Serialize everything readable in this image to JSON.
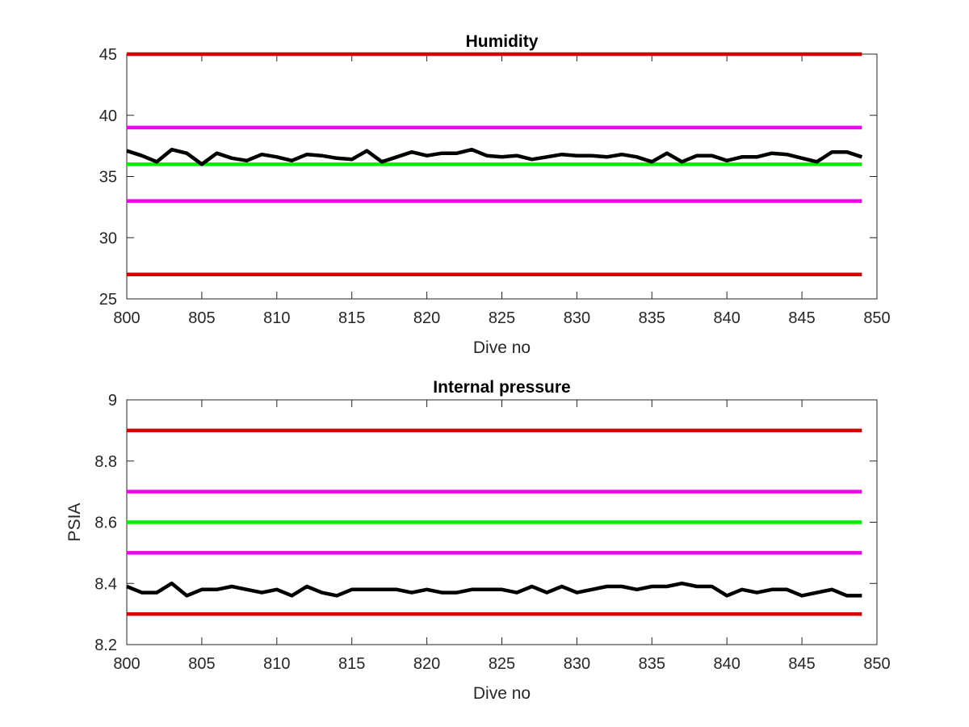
{
  "chart_data": [
    {
      "type": "line",
      "title": "Humidity",
      "xlabel": "Dive no",
      "ylabel": "",
      "xlim": [
        800,
        850
      ],
      "ylim": [
        25,
        45
      ],
      "xticks": [
        800,
        805,
        810,
        815,
        820,
        825,
        830,
        835,
        840,
        845,
        850
      ],
      "yticks": [
        25,
        30,
        35,
        40,
        45
      ],
      "grid": false,
      "series": [
        {
          "color": "#000000",
          "x": [
            800,
            801,
            802,
            803,
            804,
            805,
            806,
            807,
            808,
            809,
            810,
            811,
            812,
            813,
            814,
            815,
            816,
            817,
            818,
            819,
            820,
            821,
            822,
            823,
            824,
            825,
            826,
            827,
            828,
            829,
            830,
            831,
            832,
            833,
            834,
            835,
            836,
            837,
            838,
            839,
            840,
            841,
            842,
            843,
            844,
            845,
            846,
            847,
            848,
            849
          ],
          "y": [
            37.1,
            36.7,
            36.2,
            37.2,
            36.9,
            36.0,
            36.9,
            36.5,
            36.3,
            36.8,
            36.6,
            36.3,
            36.8,
            36.7,
            36.5,
            36.4,
            37.1,
            36.2,
            36.6,
            37.0,
            36.7,
            36.9,
            36.9,
            37.2,
            36.7,
            36.6,
            36.7,
            36.4,
            36.6,
            36.8,
            36.7,
            36.7,
            36.6,
            36.8,
            36.6,
            36.2,
            36.9,
            36.2,
            36.7,
            36.7,
            36.3,
            36.6,
            36.6,
            36.9,
            36.8,
            36.5,
            36.2,
            37.0,
            37.0,
            36.6
          ]
        }
      ],
      "reference_lines": [
        {
          "y": 45,
          "color": "#d40000"
        },
        {
          "y": 39,
          "color": "#ee00ee"
        },
        {
          "y": 36,
          "color": "#00ee00"
        },
        {
          "y": 33,
          "color": "#ee00ee"
        },
        {
          "y": 27,
          "color": "#d40000"
        }
      ],
      "reference_x_range": [
        800,
        849
      ]
    },
    {
      "type": "line",
      "title": "Internal pressure",
      "xlabel": "Dive no",
      "ylabel": "PSIA",
      "xlim": [
        800,
        850
      ],
      "ylim": [
        8.2,
        9.0
      ],
      "xticks": [
        800,
        805,
        810,
        815,
        820,
        825,
        830,
        835,
        840,
        845,
        850
      ],
      "yticks": [
        8.2,
        8.4,
        8.6,
        8.8,
        9
      ],
      "ytick_labels": [
        "8.2",
        "8.4",
        "8.6",
        "8.8",
        "9"
      ],
      "grid": false,
      "series": [
        {
          "color": "#000000",
          "x": [
            800,
            801,
            802,
            803,
            804,
            805,
            806,
            807,
            808,
            809,
            810,
            811,
            812,
            813,
            814,
            815,
            816,
            817,
            818,
            819,
            820,
            821,
            822,
            823,
            824,
            825,
            826,
            827,
            828,
            829,
            830,
            831,
            832,
            833,
            834,
            835,
            836,
            837,
            838,
            839,
            840,
            841,
            842,
            843,
            844,
            845,
            846,
            847,
            848,
            849
          ],
          "y": [
            8.39,
            8.37,
            8.37,
            8.4,
            8.36,
            8.38,
            8.38,
            8.39,
            8.38,
            8.37,
            8.38,
            8.36,
            8.39,
            8.37,
            8.36,
            8.38,
            8.38,
            8.38,
            8.38,
            8.37,
            8.38,
            8.37,
            8.37,
            8.38,
            8.38,
            8.38,
            8.37,
            8.39,
            8.37,
            8.39,
            8.37,
            8.38,
            8.39,
            8.39,
            8.38,
            8.39,
            8.39,
            8.4,
            8.39,
            8.39,
            8.36,
            8.38,
            8.37,
            8.38,
            8.38,
            8.36,
            8.37,
            8.38,
            8.36,
            8.36
          ]
        }
      ],
      "reference_lines": [
        {
          "y": 8.9,
          "color": "#d40000"
        },
        {
          "y": 8.7,
          "color": "#ee00ee"
        },
        {
          "y": 8.6,
          "color": "#00ee00"
        },
        {
          "y": 8.5,
          "color": "#ee00ee"
        },
        {
          "y": 8.3,
          "color": "#d40000"
        }
      ],
      "reference_x_range": [
        800,
        849
      ]
    }
  ]
}
